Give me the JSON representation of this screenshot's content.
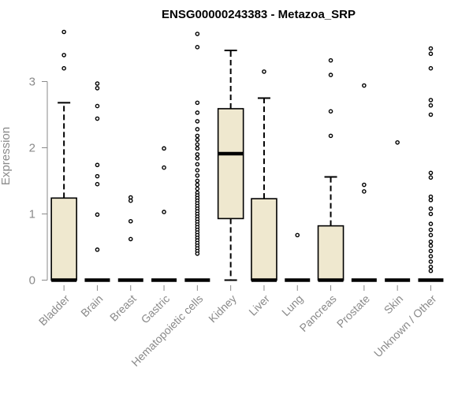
{
  "chart_data": {
    "type": "boxplot",
    "title": "ENSG00000243383 - Metazoa_SRP",
    "ylabel": "Expression",
    "xlabel": "",
    "ylim": [
      0,
      3.9
    ],
    "yticks": [
      0,
      1,
      2,
      3
    ],
    "grid": false,
    "box_color": "#efe8cf",
    "categories": [
      "Bladder",
      "Brain",
      "Breast",
      "Gastric",
      "Hematopoietic cells",
      "Kidney",
      "Liver",
      "Lung",
      "Pancreas",
      "Prostate",
      "Skin",
      "Unknown / Other"
    ],
    "boxes": [
      {
        "q1": 0,
        "median": 0,
        "q3": 1.24,
        "whisker_low": 0,
        "whisker_high": 2.68,
        "outliers": [
          3.75,
          3.4,
          3.2
        ]
      },
      {
        "q1": 0,
        "median": 0,
        "q3": 0,
        "whisker_low": 0,
        "whisker_high": 0,
        "outliers": [
          2.97,
          2.9,
          2.63,
          2.44,
          1.74,
          1.57,
          1.45,
          0.99,
          0.46
        ]
      },
      {
        "q1": 0,
        "median": 0,
        "q3": 0,
        "whisker_low": 0,
        "whisker_high": 0,
        "outliers": [
          1.25,
          1.2,
          0.89,
          0.62
        ]
      },
      {
        "q1": 0,
        "median": 0,
        "q3": 0,
        "whisker_low": 0,
        "whisker_high": 0,
        "outliers": [
          1.99,
          1.7,
          1.03
        ]
      },
      {
        "q1": 0,
        "median": 0,
        "q3": 0,
        "whisker_low": 0,
        "whisker_high": 0,
        "outliers": [
          3.72,
          3.52,
          2.68,
          2.53,
          2.4,
          2.28,
          2.18,
          2.12,
          2.05,
          1.99,
          1.9,
          1.84,
          1.75,
          1.66,
          1.58,
          1.5,
          1.44,
          1.38,
          1.32,
          1.28,
          1.24,
          1.2,
          1.16,
          1.12,
          1.08,
          1.04,
          1.0,
          0.96,
          0.92,
          0.88,
          0.84,
          0.8,
          0.76,
          0.72,
          0.68,
          0.64,
          0.6,
          0.56,
          0.52,
          0.48,
          0.44,
          0.4
        ]
      },
      {
        "q1": 0.93,
        "median": 1.91,
        "q3": 2.59,
        "whisker_low": 0,
        "whisker_high": 3.47,
        "outliers": []
      },
      {
        "q1": 0,
        "median": 0,
        "q3": 1.23,
        "whisker_low": 0,
        "whisker_high": 2.75,
        "outliers": [
          3.15
        ]
      },
      {
        "q1": 0,
        "median": 0,
        "q3": 0,
        "whisker_low": 0,
        "whisker_high": 0,
        "outliers": [
          0.68
        ]
      },
      {
        "q1": 0,
        "median": 0,
        "q3": 0.82,
        "whisker_low": 0,
        "whisker_high": 1.56,
        "outliers": [
          3.32,
          3.1,
          2.55,
          2.18
        ]
      },
      {
        "q1": 0,
        "median": 0,
        "q3": 0,
        "whisker_low": 0,
        "whisker_high": 0,
        "outliers": [
          2.94,
          1.44,
          1.34
        ]
      },
      {
        "q1": 0,
        "median": 0,
        "q3": 0,
        "whisker_low": 0,
        "whisker_high": 0,
        "outliers": [
          2.08
        ]
      },
      {
        "q1": 0,
        "median": 0,
        "q3": 0,
        "whisker_low": 0,
        "whisker_high": 0,
        "outliers": [
          3.5,
          3.42,
          3.2,
          2.72,
          2.64,
          2.5,
          1.62,
          1.55,
          1.26,
          1.21,
          1.08,
          1.0,
          0.85,
          0.76,
          0.68,
          0.58,
          0.52,
          0.44,
          0.36,
          0.28,
          0.2,
          0.14
        ]
      }
    ]
  }
}
